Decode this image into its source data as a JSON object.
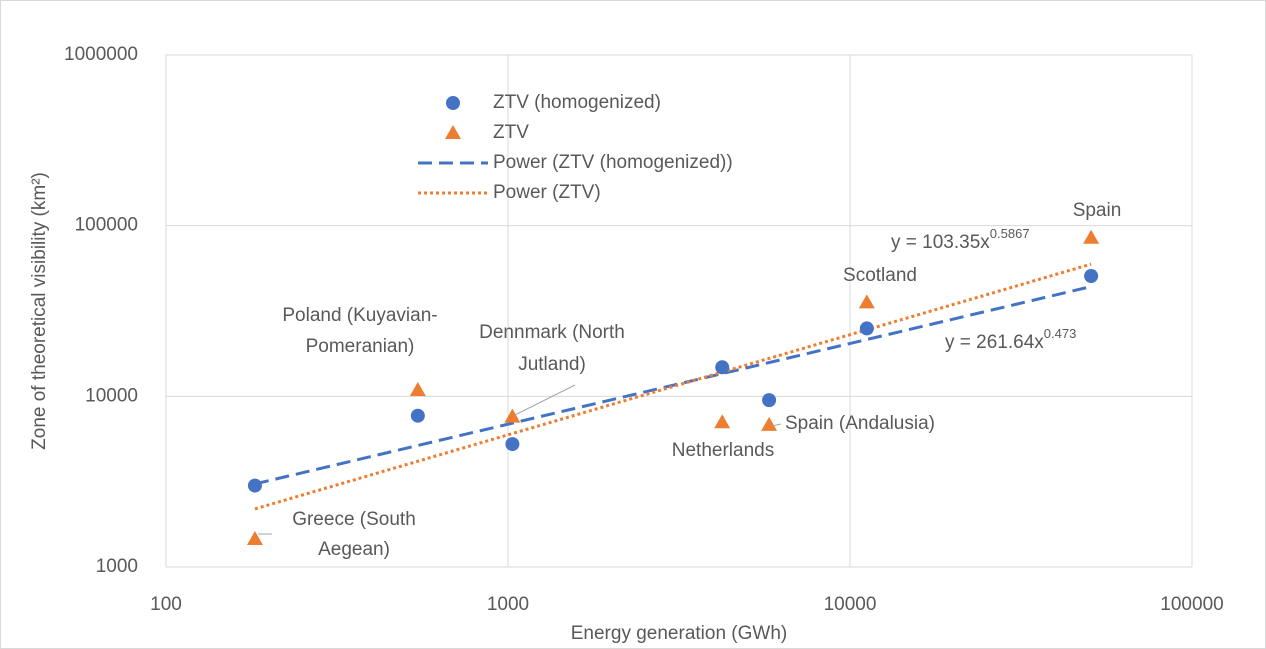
{
  "chart_data": {
    "type": "scatter",
    "xlabel": "Energy generation (GWh)",
    "ylabel": "Zone of theoretical visibility (km²)",
    "xscale": "log",
    "yscale": "log",
    "xlim": [
      100,
      100000
    ],
    "ylim": [
      1000,
      1000000
    ],
    "xticks": [
      100,
      1000,
      10000,
      100000
    ],
    "yticks": [
      1000,
      10000,
      100000,
      1000000
    ],
    "grid": true,
    "legend": "top",
    "series": [
      {
        "name": "ZTV (homogenized)",
        "color": "#4472c4",
        "marker": "circle",
        "x": [
          182,
          545,
          1030,
          4230,
          5800,
          11200,
          50700
        ],
        "values": [
          3000,
          7700,
          5250,
          14800,
          9500,
          25000,
          50700
        ]
      },
      {
        "name": "ZTV",
        "color": "#ed7d31",
        "marker": "triangle",
        "x": [
          182,
          545,
          1030,
          4230,
          5800,
          11200,
          50700
        ],
        "values": [
          1460,
          10900,
          7600,
          7050,
          6800,
          35500,
          85000
        ],
        "labels": [
          [
            "Greece (South",
            "Aegean)"
          ],
          [
            "Poland (Kuyavian-",
            "Pomeranian)"
          ],
          [
            "Dennmark (North",
            "Jutland)"
          ],
          [
            "Netherlands"
          ],
          [
            "Spain (Andalusia)"
          ],
          [
            "Scotland"
          ],
          [
            "Spain"
          ]
        ]
      }
    ],
    "trendlines": [
      {
        "name": "Power (ZTV (homogenized))",
        "color": "#4472c4",
        "style": "dashed",
        "coefficient": 261.64,
        "exponent": 0.473,
        "equation": {
          "text": "y = 261.64x",
          "sup": "0.473"
        }
      },
      {
        "name": "Power (ZTV)",
        "color": "#ed7d31",
        "style": "dotted",
        "coefficient": 103.35,
        "exponent": 0.5867,
        "equation": {
          "text": "y = 103.35x",
          "sup": "0.5867"
        }
      }
    ]
  }
}
